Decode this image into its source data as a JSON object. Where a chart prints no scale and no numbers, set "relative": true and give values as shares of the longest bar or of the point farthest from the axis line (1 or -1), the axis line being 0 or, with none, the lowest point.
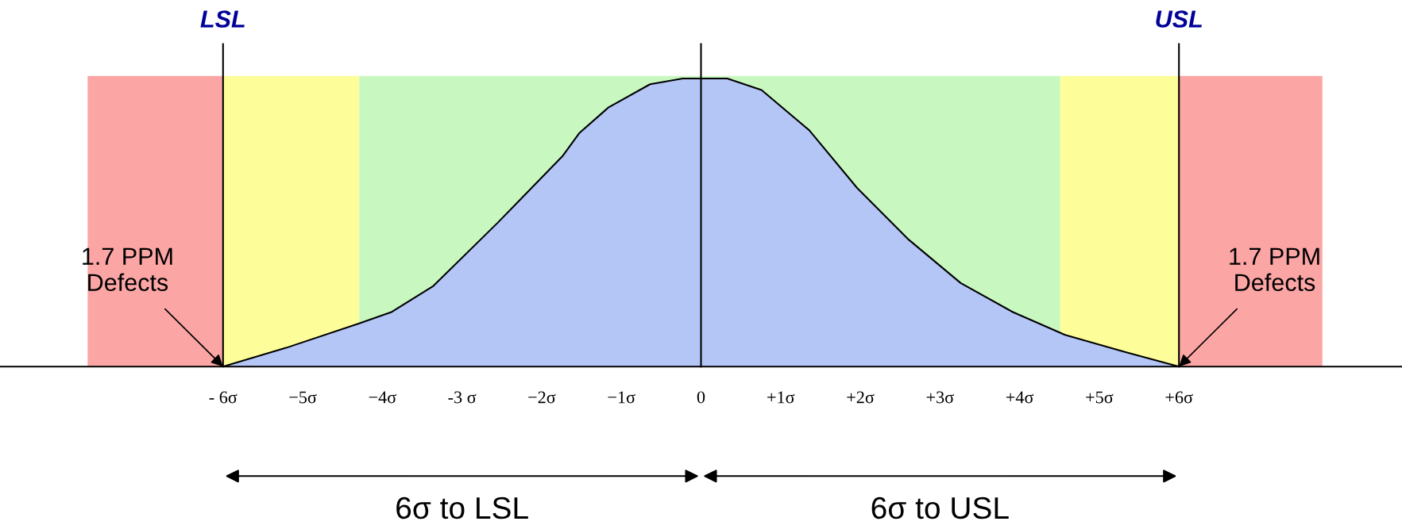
{
  "chart_data": {
    "type": "area",
    "relative": true,
    "series": [
      {
        "color": "#b4c6f6",
        "x": [
          -6,
          -5.21,
          -4.29,
          -3.88,
          -3.36,
          -2.55,
          -1.74,
          -1.53,
          -1.16,
          -0.64,
          -0.23,
          0,
          0.33,
          0.76,
          1.36,
          1.96,
          2.61,
          3.26,
          3.91,
          4.57,
          5.33,
          6
        ],
        "values": [
          0,
          0.065,
          0.15,
          0.19,
          0.28,
          0.5,
          0.73,
          0.81,
          0.9,
          0.98,
          1.0,
          1.0,
          1.0,
          0.96,
          0.82,
          0.62,
          0.44,
          0.29,
          0.19,
          0.11,
          0.05,
          0
        ]
      }
    ],
    "xlim": [
      -8.8,
      8.8
    ],
    "xticks": [
      {
        "value": -6,
        "label": "- 6σ"
      },
      {
        "value": -5,
        "label": "−5σ"
      },
      {
        "value": -4,
        "label": "−4σ"
      },
      {
        "value": -3,
        "label": "-3 σ"
      },
      {
        "value": -2,
        "label": "−2σ"
      },
      {
        "value": -1,
        "label": "−1σ"
      },
      0,
      {
        "value": 1,
        "label": "+1σ"
      },
      {
        "value": 2,
        "label": "+2σ"
      },
      {
        "value": 3,
        "label": "+3σ"
      },
      {
        "value": 4,
        "label": "+4σ"
      },
      {
        "value": 5,
        "label": "+5σ"
      },
      {
        "value": 6,
        "label": "+6σ"
      }
    ],
    "tick_labels": "x",
    "grid": false,
    "bands": [
      {
        "axis": "x",
        "from": -7.7,
        "to": -6,
        "color": "#fca5a5"
      },
      {
        "axis": "x",
        "from": -6,
        "to": -4.29,
        "color": "#fdfd9a"
      },
      {
        "axis": "x",
        "from": -4.29,
        "to": 0,
        "color": "#c8f8c0"
      },
      {
        "axis": "x",
        "from": 0,
        "to": 4.51,
        "color": "#c8f8c0"
      },
      {
        "axis": "x",
        "from": 4.51,
        "to": 6,
        "color": "#fdfd9a"
      },
      {
        "axis": "x",
        "from": 6,
        "to": 7.8,
        "color": "#fca5a5"
      }
    ],
    "ref_lines": [
      {
        "axis": "x",
        "value": -6,
        "label": "LSL",
        "color": "#000000"
      },
      {
        "axis": "x",
        "value": 0,
        "label": null,
        "color": "#000000"
      },
      {
        "axis": "x",
        "value": 6,
        "label": "USL",
        "color": "#000000"
      }
    ],
    "annotations": [
      {
        "text": "1.7 PPM\nDefects",
        "x": -6,
        "y": 0
      },
      {
        "text": "1.7 PPM\nDefects",
        "x": 6,
        "y": 0
      },
      "6σ to LSL",
      "6σ to USL"
    ]
  }
}
